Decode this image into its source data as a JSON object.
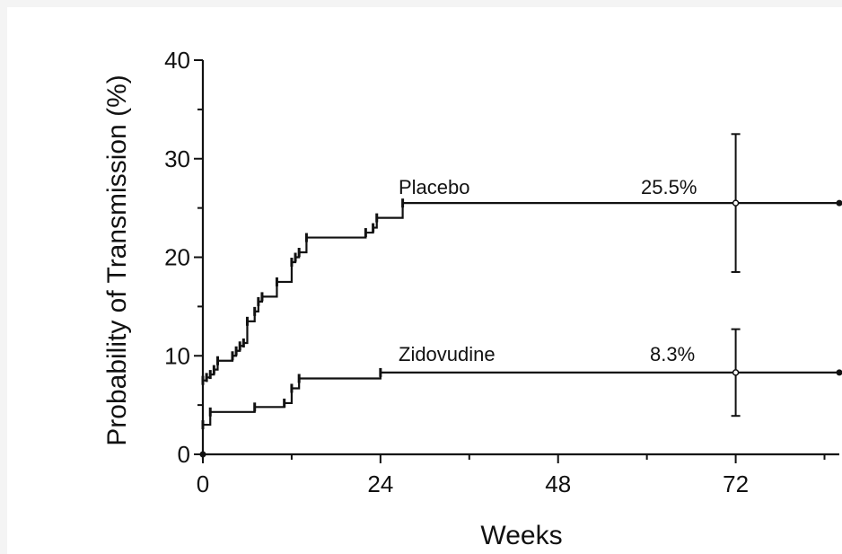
{
  "chart_data": {
    "type": "line",
    "title": "",
    "xlabel": "Weeks",
    "ylabel": "Probability of Transmission (%)",
    "xlim": [
      0,
      86
    ],
    "ylim": [
      0,
      40
    ],
    "x_ticks": [
      0,
      24,
      48,
      72
    ],
    "y_ticks": [
      0,
      10,
      20,
      30,
      40
    ],
    "grid": false,
    "legend": "none",
    "series": [
      {
        "name": "Placebo",
        "color": "#111111",
        "final_label": "25.5%",
        "steps": [
          [
            0,
            7.5
          ],
          [
            0.5,
            7.8
          ],
          [
            1,
            8.1
          ],
          [
            1.5,
            8.6
          ],
          [
            2,
            9.5
          ],
          [
            4,
            10.0
          ],
          [
            4.5,
            10.5
          ],
          [
            5,
            11.0
          ],
          [
            5.5,
            11.3
          ],
          [
            6,
            13.5
          ],
          [
            7,
            14.5
          ],
          [
            7.5,
            15.5
          ],
          [
            8,
            16.0
          ],
          [
            10,
            17.5
          ],
          [
            12,
            19.5
          ],
          [
            12.5,
            20.0
          ],
          [
            13,
            20.5
          ],
          [
            14,
            22.0
          ],
          [
            22,
            22.5
          ],
          [
            23,
            23.0
          ],
          [
            23.5,
            24.0
          ],
          [
            27,
            25.5
          ],
          [
            86,
            25.5
          ]
        ],
        "error_bar": {
          "x": 72,
          "y": 25.5,
          "lower": 18.5,
          "upper": 32.5
        }
      },
      {
        "name": "Zidovudine",
        "color": "#111111",
        "final_label": "8.3%",
        "steps": [
          [
            0,
            3.0
          ],
          [
            1,
            4.3
          ],
          [
            7,
            4.8
          ],
          [
            11,
            5.2
          ],
          [
            12,
            6.7
          ],
          [
            13,
            7.7
          ],
          [
            24,
            8.3
          ],
          [
            86,
            8.3
          ]
        ],
        "error_bar": {
          "x": 72,
          "y": 8.3,
          "lower": 3.9,
          "upper": 12.7
        }
      }
    ]
  }
}
